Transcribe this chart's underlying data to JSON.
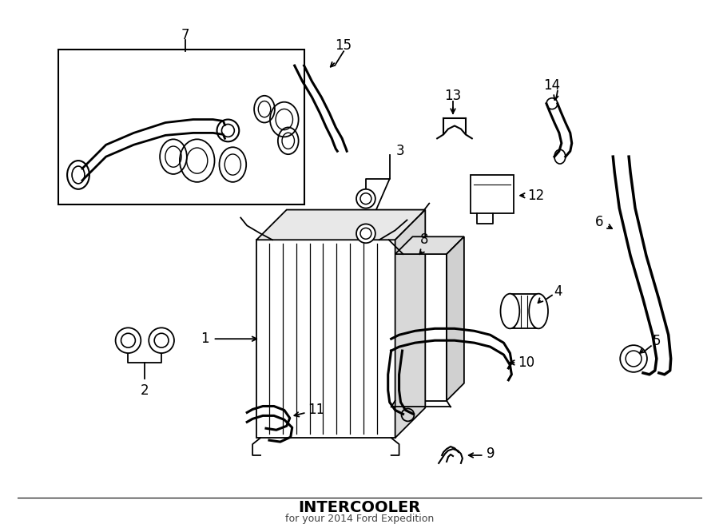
{
  "title": "INTERCOOLER",
  "subtitle": "for your 2014 Ford Expedition",
  "bg_color": "#ffffff",
  "line_color": "#000000",
  "fig_width": 9.0,
  "fig_height": 6.61
}
